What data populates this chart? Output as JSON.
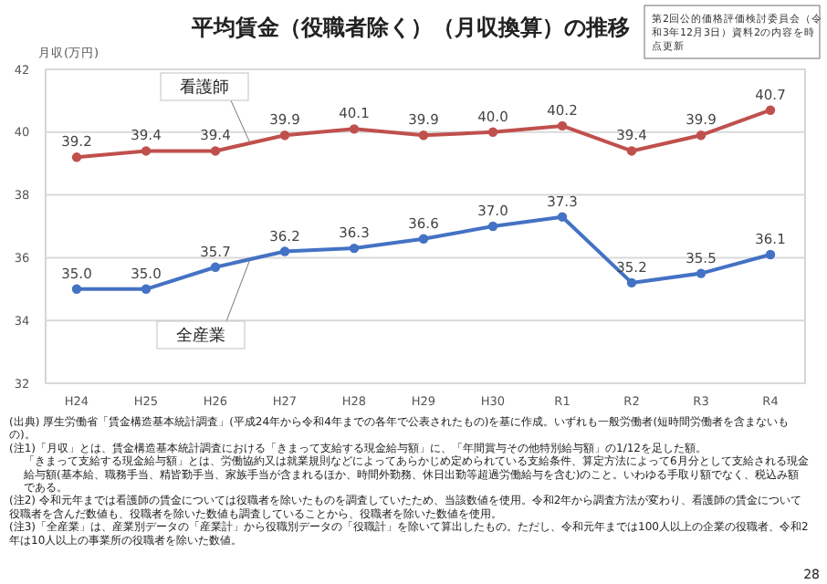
{
  "chart_data": {
    "type": "line",
    "title": "平均賃金（役職者除く）（月収換算）の推移",
    "ylabel": "月収(万円)",
    "categories": [
      "H24",
      "H25",
      "H26",
      "H27",
      "H28",
      "H29",
      "H30",
      "R1",
      "R2",
      "R3",
      "R4"
    ],
    "series": [
      {
        "name": "看護師",
        "color": "#c0504d",
        "values": [
          39.2,
          39.4,
          39.4,
          39.9,
          40.1,
          39.9,
          40.0,
          40.2,
          39.4,
          39.9,
          40.7
        ],
        "value_labels": [
          "39.2",
          "39.4",
          "39.4",
          "39.9",
          "40.1",
          "39.9",
          "40.0",
          "40.2",
          "39.4",
          "39.9",
          "40.7"
        ]
      },
      {
        "name": "全産業",
        "color": "#4472c4",
        "values": [
          35.0,
          35.0,
          35.7,
          36.2,
          36.3,
          36.6,
          37.0,
          37.3,
          35.2,
          35.5,
          36.1
        ],
        "value_labels": [
          "35.0",
          "35.0",
          "35.7",
          "36.2",
          "36.3",
          "36.6",
          "37.0",
          "37.3",
          "35.2",
          "35.5",
          "36.1"
        ]
      }
    ],
    "ylim": [
      32,
      42
    ],
    "yticks": [
      32,
      34,
      36,
      38,
      40,
      42
    ],
    "grid": "y",
    "marker": "circle",
    "line_style": "solid",
    "annotations": [
      "第2回公的価格評価検討委員会（令和3年12月3日）資料2の内容を時点更新",
      "(出典) 厚生労働省「賃金構造基本統計調査」(平成24年から令和4年までの各年で公表されたもの)を基に作成。いずれも一般労働者(短時間労働者を含まないもの)。",
      "(注1)「月収」とは、賃金構造基本統計調査における「きまって支給する現金給与額」に、「年間賞与その他特別給与額」の1/12を足した額。",
      "「きまって支給する現金給与額」とは、労働協約又は就業規則などによってあらかじめ定められている支給条件、算定方法によって6月分として支給される現金給与額(基本給、職務手当、精皆勤手当、家族手当が含まれるほか、時間外勤務、休日出勤等超過労働給与を含む)のこと。いわゆる手取り額でなく、税込み額である。",
      "(注2) 令和元年までは看護師の賃金については役職者を除いたものを調査していたため、当該数値を使用。令和2年から調査方法が変わり、看護師の賃金について役職者を含んだ数値も、役職者を除いた数値も調査していることから、役職者を除いた数値を使用。",
      "(注3)「全産業」は、産業別データの「産業計」から役職別データの「役職計」を除いて算出したもの。ただし、令和元年までは100人以上の企業の役職者、令和2年は10人以上の事業所の役職者を除いた数値。",
      "28"
    ]
  }
}
